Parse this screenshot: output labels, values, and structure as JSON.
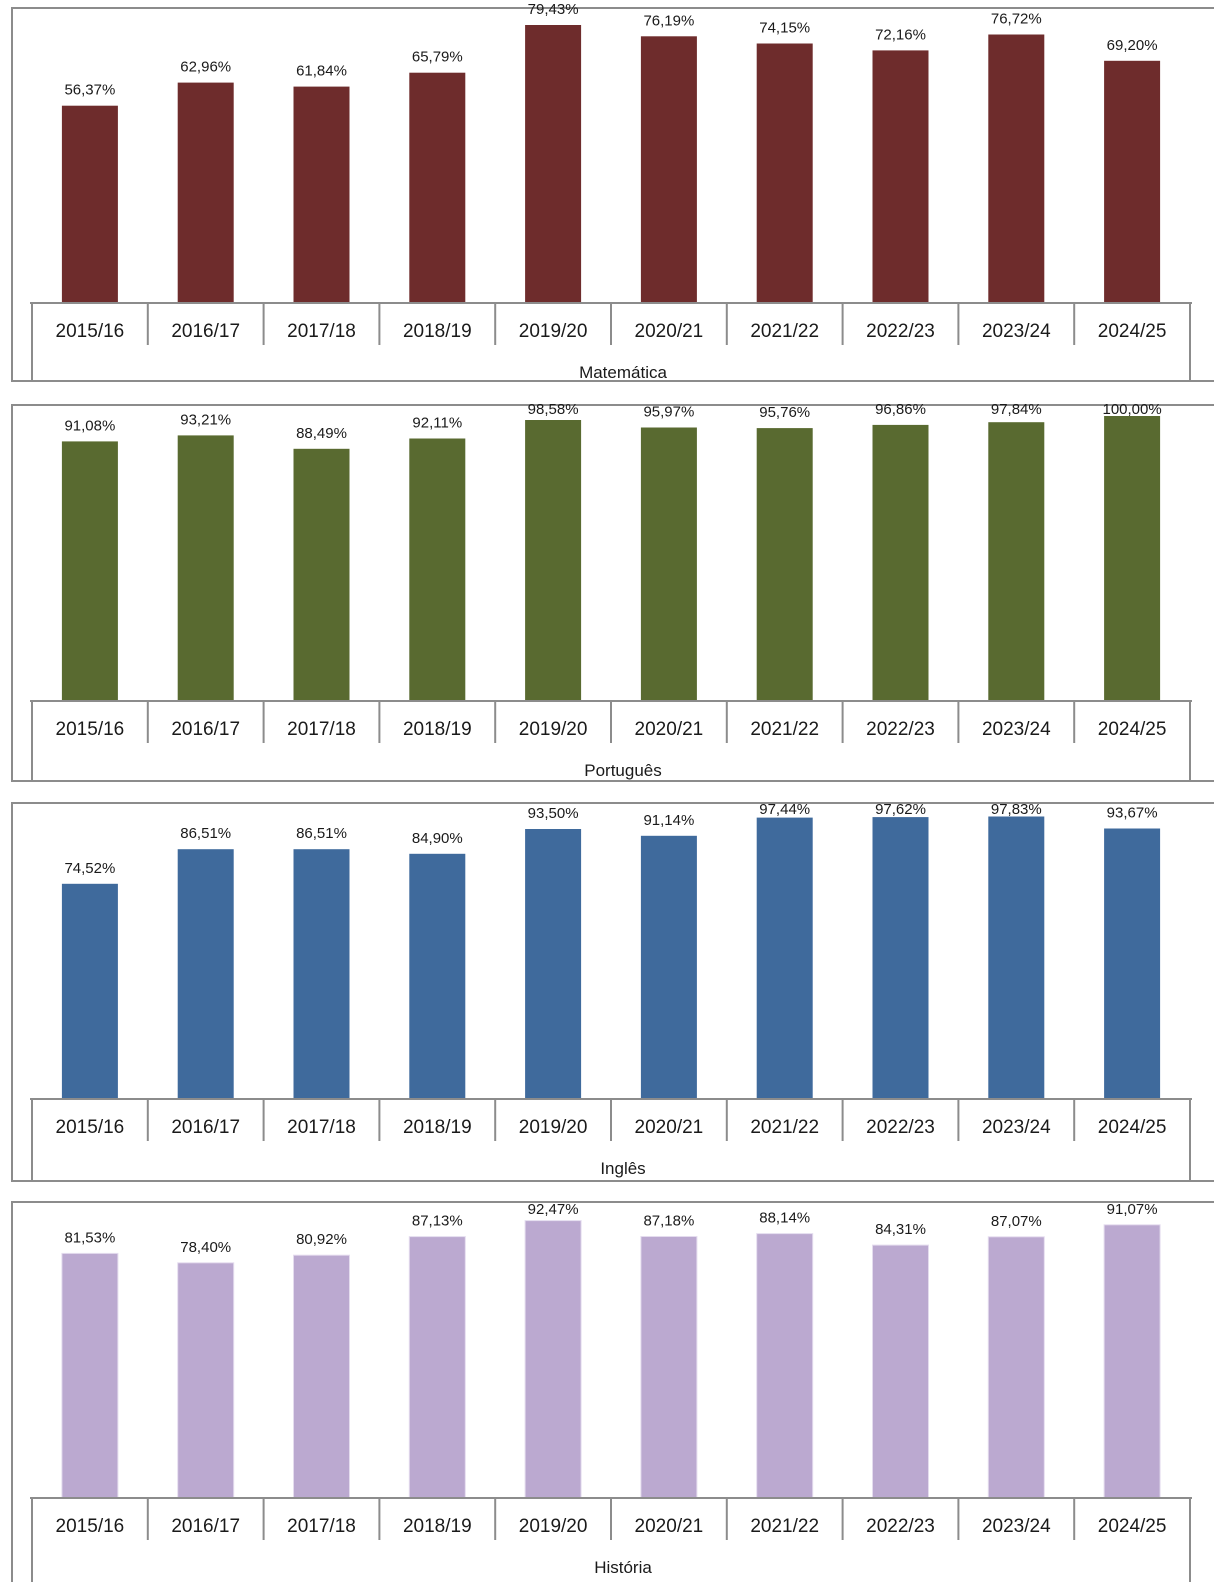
{
  "chart_data": [
    {
      "type": "bar",
      "categories": [
        "2015/16",
        "2016/17",
        "2017/18",
        "2018/19",
        "2019/20",
        "2020/21",
        "2021/22",
        "2022/23",
        "2023/24",
        "2024/25"
      ],
      "values": [
        56.37,
        62.96,
        61.84,
        65.79,
        79.43,
        76.19,
        74.15,
        72.16,
        76.72,
        69.2
      ],
      "labels": [
        "56,37%",
        "62,96%",
        "61,84%",
        "65,79%",
        "79,43%",
        "76,19%",
        "74,15%",
        "72,16%",
        "76,72%",
        "69,20%"
      ],
      "xlabel": "Matemática",
      "color": "#6e2c2c",
      "ylim": [
        0,
        82
      ]
    },
    {
      "type": "bar",
      "categories": [
        "2015/16",
        "2016/17",
        "2017/18",
        "2018/19",
        "2019/20",
        "2020/21",
        "2021/22",
        "2022/23",
        "2023/24",
        "2024/25"
      ],
      "values": [
        91.08,
        93.21,
        88.49,
        92.11,
        98.58,
        95.97,
        95.76,
        96.86,
        97.84,
        100.0
      ],
      "labels": [
        "91,08%",
        "93,21%",
        "88,49%",
        "92,11%",
        "98,58%",
        "95,97%",
        "95,76%",
        "96,86%",
        "97,84%",
        "100,00%"
      ],
      "xlabel": "Português",
      "color": "#596a30",
      "ylim": [
        0,
        100
      ]
    },
    {
      "type": "bar",
      "categories": [
        "2015/16",
        "2016/17",
        "2017/18",
        "2018/19",
        "2019/20",
        "2020/21",
        "2021/22",
        "2022/23",
        "2023/24",
        "2024/25"
      ],
      "values": [
        74.52,
        86.51,
        86.51,
        84.9,
        93.5,
        91.14,
        97.44,
        97.62,
        97.83,
        93.67
      ],
      "labels": [
        "74,52%",
        "86,51%",
        "86,51%",
        "84,90%",
        "93,50%",
        "91,14%",
        "97,44%",
        "97,62%",
        "97,83%",
        "93,67%"
      ],
      "xlabel": "Inglês",
      "color": "#3f6a9c",
      "ylim": [
        0,
        98
      ]
    },
    {
      "type": "bar",
      "categories": [
        "2015/16",
        "2016/17",
        "2017/18",
        "2018/19",
        "2019/20",
        "2020/21",
        "2021/22",
        "2022/23",
        "2023/24",
        "2024/25"
      ],
      "values": [
        81.53,
        78.4,
        80.92,
        87.13,
        92.47,
        87.18,
        88.14,
        84.31,
        87.07,
        91.07
      ],
      "labels": [
        "81,53%",
        "78,40%",
        "80,92%",
        "87,13%",
        "92,47%",
        "87,18%",
        "88,14%",
        "84,31%",
        "87,07%",
        "91,07%"
      ],
      "xlabel": "História",
      "color": "#bba9d0",
      "ylim": [
        0,
        94
      ]
    }
  ]
}
